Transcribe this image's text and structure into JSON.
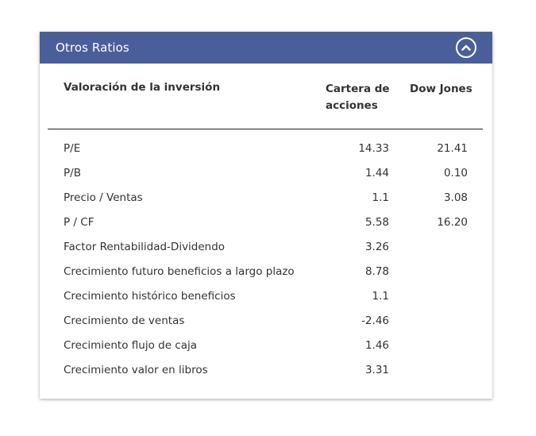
{
  "panel": {
    "title": "Otros Ratios",
    "collapse_icon": "chevron-up-circle-icon",
    "header_color": "#4a5f9a"
  },
  "table": {
    "headers": {
      "metric": "Valoración de la inversión",
      "portfolio": "Cartera de acciones",
      "benchmark": "Dow Jones"
    },
    "rows": [
      {
        "metric": "P/E",
        "portfolio": "14.33",
        "benchmark": "21.41"
      },
      {
        "metric": "P/B",
        "portfolio": "1.44",
        "benchmark": "0.10"
      },
      {
        "metric": "Precio / Ventas",
        "portfolio": "1.1",
        "benchmark": "3.08"
      },
      {
        "metric": "P / CF",
        "portfolio": "5.58",
        "benchmark": "16.20"
      },
      {
        "metric": "Factor Rentabilidad-Dividendo",
        "portfolio": "3.26",
        "benchmark": ""
      },
      {
        "metric": "Crecimiento futuro beneficios a largo plazo",
        "portfolio": "8.78",
        "benchmark": ""
      },
      {
        "metric": "Crecimiento histórico beneficios",
        "portfolio": "1.1",
        "benchmark": ""
      },
      {
        "metric": "Crecimiento de ventas",
        "portfolio": "-2.46",
        "benchmark": ""
      },
      {
        "metric": "Crecimiento flujo de caja",
        "portfolio": "1.46",
        "benchmark": ""
      },
      {
        "metric": "Crecimiento valor en libros",
        "portfolio": "3.31",
        "benchmark": ""
      }
    ]
  }
}
